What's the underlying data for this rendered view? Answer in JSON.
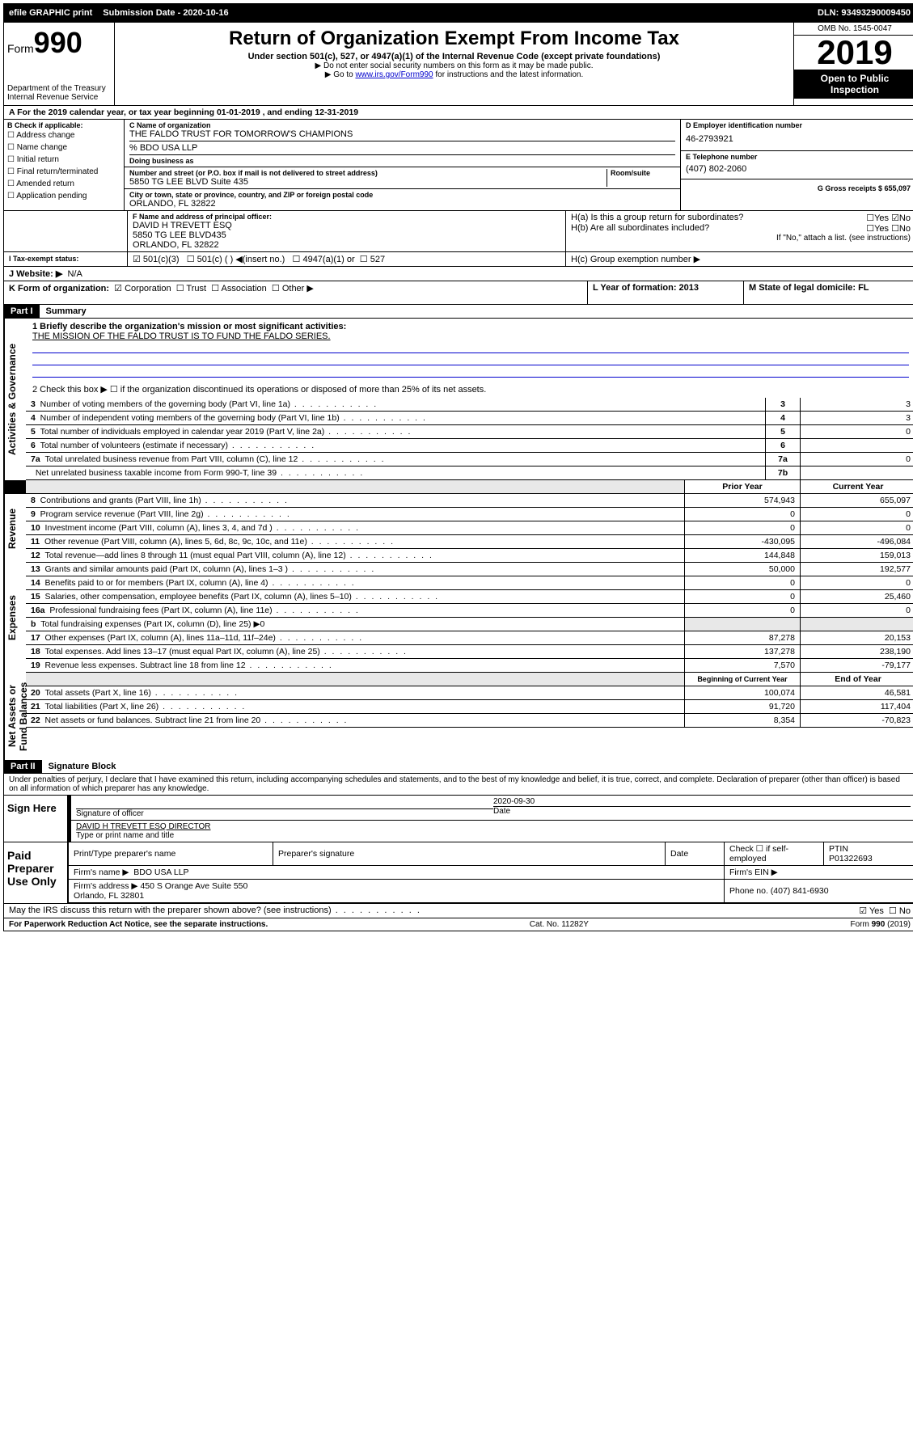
{
  "topbar": {
    "efile": "efile GRAPHIC print",
    "submission_label": "Submission Date - 2020-10-16",
    "dln": "DLN: 93493290009450"
  },
  "header": {
    "form_prefix": "Form",
    "form_number": "990",
    "dept": "Department of the Treasury\nInternal Revenue Service",
    "title": "Return of Organization Exempt From Income Tax",
    "subtitle": "Under section 501(c), 527, or 4947(a)(1) of the Internal Revenue Code (except private foundations)",
    "note1": "▶ Do not enter social security numbers on this form as it may be made public.",
    "note2": "▶ Go to www.irs.gov/Form990 for instructions and the latest information.",
    "omb": "OMB No. 1545-0047",
    "year": "2019",
    "open": "Open to Public Inspection"
  },
  "row_a": "A For the 2019 calendar year, or tax year beginning 01-01-2019    , and ending 12-31-2019",
  "box_b": {
    "label": "B Check if applicable:",
    "items": [
      "Address change",
      "Name change",
      "Initial return",
      "Final return/terminated",
      "Amended return",
      "Application pending"
    ]
  },
  "box_c": {
    "name_label": "C Name of organization",
    "name": "THE FALDO TRUST FOR TOMORROW'S CHAMPIONS",
    "care_of": "% BDO USA LLP",
    "dba_label": "Doing business as",
    "addr_label": "Number and street (or P.O. box if mail is not delivered to street address)",
    "addr": "5850 TG LEE BLVD Suite 435",
    "room_label": "Room/suite",
    "city_label": "City or town, state or province, country, and ZIP or foreign postal code",
    "city": "ORLANDO, FL  32822"
  },
  "box_d": {
    "label": "D Employer identification number",
    "value": "46-2793921"
  },
  "box_e": {
    "label": "E Telephone number",
    "value": "(407) 802-2060"
  },
  "box_g": {
    "label": "G Gross receipts $ 655,097"
  },
  "box_f": {
    "label": "F  Name and address of principal officer:",
    "name": "DAVID H TREVETT ESQ",
    "addr1": "5850 TG LEE BLVD435",
    "addr2": "ORLANDO, FL  32822"
  },
  "box_h": {
    "a": "H(a)  Is this a group return for subordinates?",
    "b": "H(b)  Are all subordinates included?",
    "b_note": "If \"No,\" attach a list. (see instructions)",
    "c": "H(c)  Group exemption number ▶"
  },
  "box_i": {
    "label": "I   Tax-exempt status:",
    "opts": [
      "501(c)(3)",
      "501(c) (  ) ◀(insert no.)",
      "4947(a)(1) or",
      "527"
    ]
  },
  "box_j": {
    "label": "J   Website: ▶",
    "value": "N/A"
  },
  "box_k": {
    "label": "K Form of organization:",
    "opts": [
      "Corporation",
      "Trust",
      "Association",
      "Other ▶"
    ]
  },
  "box_l": {
    "label": "L Year of formation: 2013"
  },
  "box_m": {
    "label": "M State of legal domicile: FL"
  },
  "part1": {
    "header": "Part I",
    "title": "Summary",
    "q1_label": "1  Briefly describe the organization's mission or most significant activities:",
    "q1_value": "THE MISSION OF THE FALDO TRUST IS TO FUND THE FALDO SERIES.",
    "q2": "2   Check this box ▶ ☐  if the organization discontinued its operations or disposed of more than 25% of its net assets.",
    "governance_rows": [
      {
        "n": "3",
        "label": "Number of voting members of the governing body (Part VI, line 1a)",
        "box": "3",
        "val": "3"
      },
      {
        "n": "4",
        "label": "Number of independent voting members of the governing body (Part VI, line 1b)",
        "box": "4",
        "val": "3"
      },
      {
        "n": "5",
        "label": "Total number of individuals employed in calendar year 2019 (Part V, line 2a)",
        "box": "5",
        "val": "0"
      },
      {
        "n": "6",
        "label": "Total number of volunteers (estimate if necessary)",
        "box": "6",
        "val": ""
      },
      {
        "n": "7a",
        "label": "Total unrelated business revenue from Part VIII, column (C), line 12",
        "box": "7a",
        "val": "0"
      },
      {
        "n": "",
        "label": "Net unrelated business taxable income from Form 990-T, line 39",
        "box": "7b",
        "val": ""
      }
    ],
    "col_headers": {
      "prior": "Prior Year",
      "current": "Current Year"
    },
    "revenue_rows": [
      {
        "n": "8",
        "label": "Contributions and grants (Part VIII, line 1h)",
        "prior": "574,943",
        "current": "655,097"
      },
      {
        "n": "9",
        "label": "Program service revenue (Part VIII, line 2g)",
        "prior": "0",
        "current": "0"
      },
      {
        "n": "10",
        "label": "Investment income (Part VIII, column (A), lines 3, 4, and 7d )",
        "prior": "0",
        "current": "0"
      },
      {
        "n": "11",
        "label": "Other revenue (Part VIII, column (A), lines 5, 6d, 8c, 9c, 10c, and 11e)",
        "prior": "-430,095",
        "current": "-496,084"
      },
      {
        "n": "12",
        "label": "Total revenue—add lines 8 through 11 (must equal Part VIII, column (A), line 12)",
        "prior": "144,848",
        "current": "159,013"
      }
    ],
    "expense_rows": [
      {
        "n": "13",
        "label": "Grants and similar amounts paid (Part IX, column (A), lines 1–3 )",
        "prior": "50,000",
        "current": "192,577"
      },
      {
        "n": "14",
        "label": "Benefits paid to or for members (Part IX, column (A), line 4)",
        "prior": "0",
        "current": "0"
      },
      {
        "n": "15",
        "label": "Salaries, other compensation, employee benefits (Part IX, column (A), lines 5–10)",
        "prior": "0",
        "current": "25,460"
      },
      {
        "n": "16a",
        "label": "Professional fundraising fees (Part IX, column (A), line 11e)",
        "prior": "0",
        "current": "0"
      },
      {
        "n": "b",
        "label": "Total fundraising expenses (Part IX, column (D), line 25) ▶0",
        "prior": "",
        "current": ""
      },
      {
        "n": "17",
        "label": "Other expenses (Part IX, column (A), lines 11a–11d, 11f–24e)",
        "prior": "87,278",
        "current": "20,153"
      },
      {
        "n": "18",
        "label": "Total expenses. Add lines 13–17 (must equal Part IX, column (A), line 25)",
        "prior": "137,278",
        "current": "238,190"
      },
      {
        "n": "19",
        "label": "Revenue less expenses. Subtract line 18 from line 12",
        "prior": "7,570",
        "current": "-79,177"
      }
    ],
    "balance_headers": {
      "begin": "Beginning of Current Year",
      "end": "End of Year"
    },
    "balance_rows": [
      {
        "n": "20",
        "label": "Total assets (Part X, line 16)",
        "prior": "100,074",
        "current": "46,581"
      },
      {
        "n": "21",
        "label": "Total liabilities (Part X, line 26)",
        "prior": "91,720",
        "current": "117,404"
      },
      {
        "n": "22",
        "label": "Net assets or fund balances. Subtract line 21 from line 20",
        "prior": "8,354",
        "current": "-70,823"
      }
    ]
  },
  "part2": {
    "header": "Part II",
    "title": "Signature Block",
    "perjury": "Under penalties of perjury, I declare that I have examined this return, including accompanying schedules and statements, and to the best of my knowledge and belief, it is true, correct, and complete. Declaration of preparer (other than officer) is based on all information of which preparer has any knowledge."
  },
  "sign": {
    "label": "Sign Here",
    "sig_label": "Signature of officer",
    "date": "2020-09-30",
    "date_label": "Date",
    "name": "DAVID H TREVETT ESQ  DIRECTOR",
    "name_label": "Type or print name and title"
  },
  "paid": {
    "label": "Paid Preparer Use Only",
    "h1": "Print/Type preparer's name",
    "h2": "Preparer's signature",
    "h3": "Date",
    "h4_a": "Check ☐ if self-employed",
    "h5": "PTIN",
    "ptin": "P01322693",
    "firm_label": "Firm's name     ▶",
    "firm_name": "BDO USA LLP",
    "firm_ein_label": "Firm's EIN ▶",
    "firm_addr_label": "Firm's address ▶",
    "firm_addr": "450 S Orange Ave Suite 550\nOrlando, FL  32801",
    "phone_label": "Phone no. (407) 841-6930"
  },
  "discuss": "May the IRS discuss this return with the preparer shown above? (see instructions)",
  "footer": {
    "left": "For Paperwork Reduction Act Notice, see the separate instructions.",
    "mid": "Cat. No. 11282Y",
    "right": "Form 990 (2019)"
  },
  "glyphs": {
    "checkbox_empty": "☐",
    "checkbox_checked": "☑",
    "yes": "Yes",
    "no": "No"
  }
}
